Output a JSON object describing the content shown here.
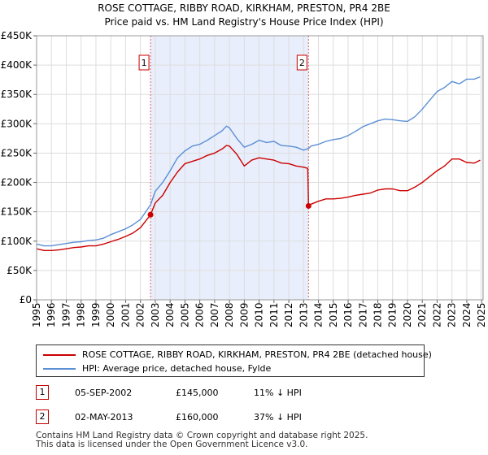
{
  "chart_data": {
    "type": "line",
    "title": "ROSE COTTAGE, RIBBY ROAD, KIRKHAM, PRESTON, PR4 2BE",
    "subtitle": "Price paid vs. HM Land Registry's House Price Index (HPI)",
    "xlabel": "",
    "ylabel": "",
    "xlim": [
      1995.0,
      2025.1
    ],
    "ylim": [
      0,
      450000
    ],
    "ytick_values": [
      0,
      50000,
      100000,
      150000,
      200000,
      250000,
      300000,
      350000,
      400000,
      450000
    ],
    "ytick_labels": [
      "£0",
      "£50K",
      "£100K",
      "£150K",
      "£200K",
      "£250K",
      "£300K",
      "£350K",
      "£400K",
      "£450K"
    ],
    "xtick_values": [
      1995,
      1996,
      1997,
      1998,
      1999,
      2000,
      2001,
      2002,
      2003,
      2004,
      2005,
      2006,
      2007,
      2008,
      2009,
      2010,
      2011,
      2012,
      2013,
      2014,
      2015,
      2016,
      2017,
      2018,
      2019,
      2020,
      2021,
      2022,
      2023,
      2024,
      2025
    ],
    "xtick_labels": [
      "1995",
      "1996",
      "1997",
      "1998",
      "1999",
      "2000",
      "2001",
      "2002",
      "2003",
      "2004",
      "2005",
      "2006",
      "2007",
      "2008",
      "2009",
      "2010",
      "2011",
      "2012",
      "2013",
      "2014",
      "2015",
      "2016",
      "2017",
      "2018",
      "2019",
      "2020",
      "2021",
      "2022",
      "2023",
      "2024",
      "2025"
    ],
    "grid": true,
    "shaded_region": [
      2002.68,
      2013.33
    ],
    "series": [
      {
        "name": "ROSE COTTAGE, RIBBY ROAD, KIRKHAM, PRESTON, PR4 2BE (detached house)",
        "color": "#cc0000",
        "x": [
          1995.0,
          1995.5,
          1996.0,
          1996.5,
          1997.0,
          1997.5,
          1998.0,
          1998.5,
          1999.0,
          1999.5,
          2000.0,
          2000.5,
          2001.0,
          2001.5,
          2002.0,
          2002.68,
          2003.0,
          2003.5,
          2004.0,
          2004.5,
          2005.0,
          2005.5,
          2006.0,
          2006.5,
          2007.0,
          2007.5,
          2007.8,
          2008.0,
          2008.5,
          2009.0,
          2009.5,
          2010.0,
          2010.5,
          2011.0,
          2011.5,
          2012.0,
          2012.5,
          2013.0,
          2013.28,
          2013.33,
          2013.5,
          2014.0,
          2014.5,
          2015.0,
          2015.5,
          2016.0,
          2016.5,
          2017.0,
          2017.5,
          2018.0,
          2018.5,
          2019.0,
          2019.5,
          2020.0,
          2020.5,
          2021.0,
          2021.5,
          2022.0,
          2022.5,
          2023.0,
          2023.5,
          2024.0,
          2024.5,
          2024.9
        ],
        "values": [
          87000,
          84000,
          84000,
          85000,
          87000,
          89000,
          90000,
          92000,
          92000,
          95000,
          99000,
          103000,
          108000,
          114000,
          123000,
          145000,
          165000,
          178000,
          200000,
          218000,
          232000,
          236000,
          240000,
          246000,
          250000,
          257000,
          263000,
          262000,
          248000,
          228000,
          238000,
          242000,
          240000,
          238000,
          233000,
          232000,
          228000,
          226000,
          224000,
          160000,
          163000,
          168000,
          172000,
          172000,
          173000,
          175000,
          178000,
          180000,
          182000,
          187000,
          189000,
          189000,
          186000,
          186000,
          192000,
          200000,
          210000,
          220000,
          228000,
          240000,
          240000,
          234000,
          233000,
          238000
        ]
      },
      {
        "name": "HPI: Average price, detached house, Fylde",
        "color": "#5b8fd6",
        "x": [
          1995.0,
          1995.5,
          1996.0,
          1996.5,
          1997.0,
          1997.5,
          1998.0,
          1998.5,
          1999.0,
          1999.5,
          2000.0,
          2000.5,
          2001.0,
          2001.5,
          2002.0,
          2002.68,
          2003.0,
          2003.5,
          2004.0,
          2004.5,
          2005.0,
          2005.5,
          2006.0,
          2006.5,
          2007.0,
          2007.5,
          2007.8,
          2008.0,
          2008.5,
          2009.0,
          2009.5,
          2010.0,
          2010.5,
          2011.0,
          2011.5,
          2012.0,
          2012.5,
          2013.0,
          2013.33,
          2013.5,
          2014.0,
          2014.5,
          2015.0,
          2015.5,
          2016.0,
          2016.5,
          2017.0,
          2017.5,
          2018.0,
          2018.5,
          2019.0,
          2019.5,
          2020.0,
          2020.5,
          2021.0,
          2021.5,
          2022.0,
          2022.5,
          2023.0,
          2023.5,
          2024.0,
          2024.5,
          2024.9
        ],
        "values": [
          95000,
          92000,
          92000,
          94000,
          96000,
          98000,
          99000,
          101000,
          102000,
          105000,
          111000,
          116000,
          121000,
          128000,
          137000,
          162000,
          185000,
          200000,
          220000,
          242000,
          254000,
          262000,
          265000,
          272000,
          280000,
          288000,
          296000,
          293000,
          275000,
          260000,
          265000,
          272000,
          268000,
          270000,
          263000,
          262000,
          260000,
          255000,
          258000,
          262000,
          265000,
          270000,
          273000,
          275000,
          280000,
          287000,
          295000,
          300000,
          305000,
          308000,
          307000,
          305000,
          304000,
          312000,
          325000,
          340000,
          355000,
          362000,
          372000,
          368000,
          376000,
          376000,
          380000
        ]
      }
    ],
    "markers": [
      {
        "label": "1",
        "x": 2002.68,
        "y": 145000,
        "series": 0
      },
      {
        "label": "2",
        "x": 2013.33,
        "y": 160000,
        "series": 0
      }
    ]
  },
  "legend": {
    "items": [
      {
        "label": "ROSE COTTAGE, RIBBY ROAD, KIRKHAM, PRESTON, PR4 2BE (detached house)",
        "color": "#cc0000"
      },
      {
        "label": "HPI: Average price, detached house, Fylde",
        "color": "#5b8fd6"
      }
    ]
  },
  "transactions": [
    {
      "num": "1",
      "date": "05-SEP-2002",
      "price": "£145,000",
      "hpi": "11% ↓ HPI"
    },
    {
      "num": "2",
      "date": "02-MAY-2013",
      "price": "£160,000",
      "hpi": "37% ↓ HPI"
    }
  ],
  "footer": {
    "line1": "Contains HM Land Registry data © Crown copyright and database right 2025.",
    "line2": "This data is licensed under the Open Government Licence v3.0."
  }
}
